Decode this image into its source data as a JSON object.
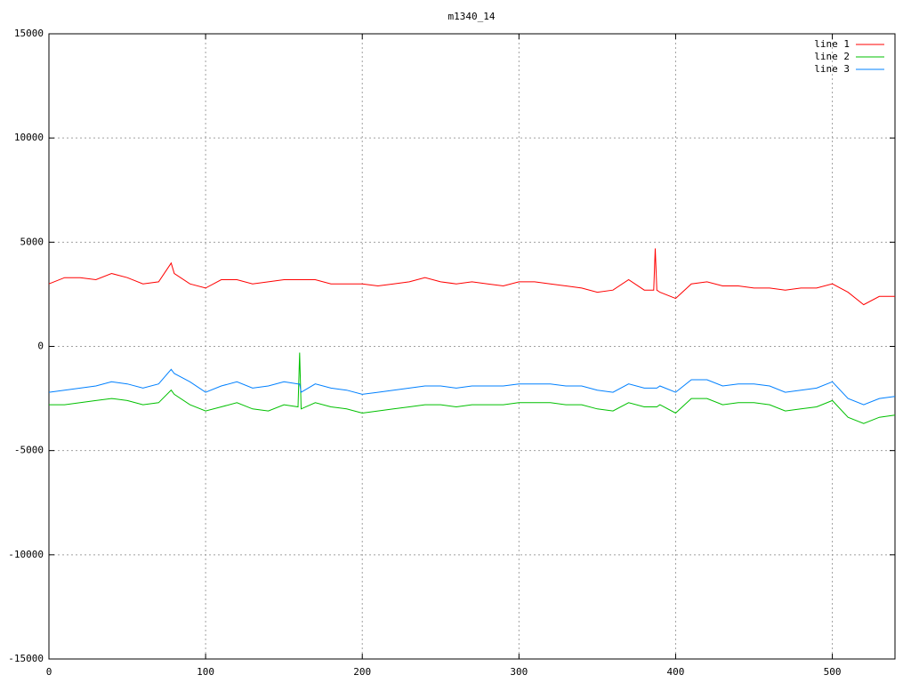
{
  "chart_data": {
    "type": "line",
    "title": "m1340_14",
    "x": [
      0,
      10,
      20,
      30,
      40,
      50,
      60,
      70,
      78,
      80,
      90,
      100,
      110,
      120,
      130,
      140,
      150,
      159,
      160,
      161,
      170,
      180,
      190,
      200,
      210,
      220,
      230,
      240,
      250,
      260,
      270,
      280,
      290,
      300,
      310,
      320,
      330,
      340,
      350,
      360,
      370,
      380,
      386,
      387,
      388,
      390,
      400,
      410,
      420,
      430,
      440,
      450,
      460,
      470,
      480,
      490,
      500,
      510,
      520,
      530,
      540
    ],
    "series": [
      {
        "name": "line 1",
        "color": "#ff0000",
        "values": [
          3000,
          3300,
          3300,
          3200,
          3500,
          3300,
          3000,
          3100,
          4000,
          3500,
          3000,
          2800,
          3200,
          3200,
          3000,
          3100,
          3200,
          3200,
          3200,
          3200,
          3200,
          3000,
          3000,
          3000,
          2900,
          3000,
          3100,
          3300,
          3100,
          3000,
          3100,
          3000,
          2900,
          3100,
          3100,
          3000,
          2900,
          2800,
          2600,
          2700,
          3200,
          2700,
          2700,
          4700,
          2700,
          2600,
          2300,
          3000,
          3100,
          2900,
          2900,
          2800,
          2800,
          2700,
          2800,
          2800,
          3000,
          2600,
          2000,
          2400,
          2400
        ]
      },
      {
        "name": "line 2",
        "color": "#00c000",
        "values": [
          -2800,
          -2800,
          -2700,
          -2600,
          -2500,
          -2600,
          -2800,
          -2700,
          -2100,
          -2300,
          -2800,
          -3100,
          -2900,
          -2700,
          -3000,
          -3100,
          -2800,
          -2900,
          -300,
          -3000,
          -2700,
          -2900,
          -3000,
          -3200,
          -3100,
          -3000,
          -2900,
          -2800,
          -2800,
          -2900,
          -2800,
          -2800,
          -2800,
          -2700,
          -2700,
          -2700,
          -2800,
          -2800,
          -3000,
          -3100,
          -2700,
          -2900,
          -2900,
          -2900,
          -2900,
          -2800,
          -3200,
          -2500,
          -2500,
          -2800,
          -2700,
          -2700,
          -2800,
          -3100,
          -3000,
          -2900,
          -2600,
          -3400,
          -3700,
          -3400,
          -3300
        ]
      },
      {
        "name": "line 3",
        "color": "#0080ff",
        "values": [
          -2200,
          -2100,
          -2000,
          -1900,
          -1700,
          -1800,
          -2000,
          -1800,
          -1100,
          -1300,
          -1700,
          -2200,
          -1900,
          -1700,
          -2000,
          -1900,
          -1700,
          -1800,
          -1800,
          -2200,
          -1800,
          -2000,
          -2100,
          -2300,
          -2200,
          -2100,
          -2000,
          -1900,
          -1900,
          -2000,
          -1900,
          -1900,
          -1900,
          -1800,
          -1800,
          -1800,
          -1900,
          -1900,
          -2100,
          -2200,
          -1800,
          -2000,
          -2000,
          -2000,
          -2000,
          -1900,
          -2200,
          -1600,
          -1600,
          -1900,
          -1800,
          -1800,
          -1900,
          -2200,
          -2100,
          -2000,
          -1700,
          -2500,
          -2800,
          -2500,
          -2400
        ]
      }
    ],
    "xlim": [
      0,
      540
    ],
    "ylim": [
      -15000,
      15000
    ],
    "xticks": [
      0,
      100,
      200,
      300,
      400,
      500
    ],
    "yticks": [
      -15000,
      -10000,
      -5000,
      0,
      5000,
      10000,
      15000
    ],
    "grid": true,
    "legend": "top-right"
  }
}
